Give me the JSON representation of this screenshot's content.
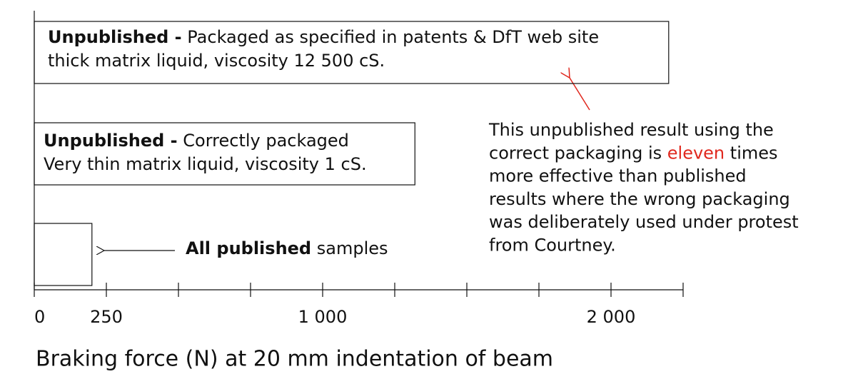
{
  "chart_data": {
    "type": "bar",
    "orientation": "horizontal",
    "title": "Braking force (N) at 20 mm indentation of beam",
    "values": [
      2200,
      1320,
      200
    ],
    "bar_labels": [
      {
        "bold": "Unpublished -",
        "text": "Packaged as specified in patents & DfT web site",
        "line2": "thick matrix liquid, viscosity 12 500 cS."
      },
      {
        "bold": "Unpublished -",
        "text": "Correctly packaged",
        "line2": "Very  thin matrix  liquid, viscosity 1 cS."
      },
      {
        "bold": "All published",
        "text": "samples"
      }
    ],
    "xlim": [
      0,
      2250
    ],
    "xticks": [
      0,
      250,
      {
        "value": 1000,
        "label": "1 000"
      },
      {
        "value": 2000,
        "label": "2 000"
      }
    ],
    "xticks_unlabeled": [
      500,
      750,
      1250,
      1500,
      1750,
      2250
    ],
    "annotation": {
      "lines": [
        [
          "This unpublished result using the"
        ],
        [
          "correct packaging is ",
          "eleven",
          " times"
        ],
        [
          "more effective than published"
        ],
        [
          "results where the wrong packaging"
        ],
        [
          "was deliberately used under protest"
        ],
        [
          "from Courtney."
        ]
      ],
      "highlight_color": "#e0281e"
    }
  }
}
